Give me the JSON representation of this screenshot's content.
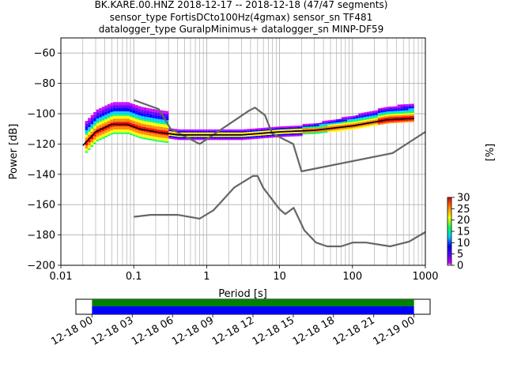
{
  "title_lines": [
    "BK.KARE.00.HNZ   2018-12-17 -- 2018-12-18  (47/47 segments)",
    "sensor_type FortisDCto100Hz(4gmax) sensor_sn TF481",
    "datalogger_type GuralpMinimus+ datalogger_sn MINP-DF59"
  ],
  "chart_data": {
    "type": "heatmap",
    "title": "BK.KARE.00.HNZ   2018-12-17 -- 2018-12-18  (47/47 segments)",
    "xlabel": "Period [s]",
    "ylabel": "Power [dB]",
    "x_scale": "log",
    "xlim": [
      0.01,
      1000
    ],
    "ylim": [
      -200,
      -50
    ],
    "x_ticks": [
      0.01,
      0.1,
      1,
      10,
      100,
      1000
    ],
    "x_tick_labels": [
      "0.01",
      "0.1",
      "1",
      "10",
      "100",
      "1000"
    ],
    "y_ticks": [
      -200,
      -180,
      -160,
      -140,
      -120,
      -100,
      -80,
      -60
    ],
    "y_tick_labels": [
      "−200",
      "−180",
      "−160",
      "−140",
      "−120",
      "−100",
      "−80",
      "−60"
    ],
    "grid": true,
    "colorbar": {
      "label": "[%]",
      "range": [
        0,
        30
      ],
      "ticks": [
        0,
        5,
        10,
        15,
        20,
        25,
        30
      ],
      "tick_labels": [
        "0",
        "5",
        "10",
        "15",
        "20",
        "25",
        "30"
      ],
      "colormap": "pqlx"
    },
    "series": [
      {
        "role": "noise-model-high",
        "color": "#666666",
        "points": [
          [
            0.1,
            -91
          ],
          [
            0.22,
            -97
          ],
          [
            0.32,
            -110
          ],
          [
            0.8,
            -120
          ],
          [
            3.8,
            -98
          ],
          [
            4.6,
            -96
          ],
          [
            6.3,
            -101
          ],
          [
            7.9,
            -113
          ],
          [
            15.4,
            -120
          ],
          [
            20,
            -138
          ],
          [
            354.8,
            -126
          ],
          [
            1000,
            -112
          ]
        ]
      },
      {
        "role": "noise-model-low",
        "color": "#666666",
        "points": [
          [
            0.1,
            -168
          ],
          [
            0.17,
            -166.7
          ],
          [
            0.4,
            -166.7
          ],
          [
            0.8,
            -169.2
          ],
          [
            1.24,
            -163.7
          ],
          [
            2.4,
            -148.6
          ],
          [
            4.3,
            -141.1
          ],
          [
            5,
            -141.1
          ],
          [
            6,
            -149
          ],
          [
            10,
            -163
          ],
          [
            12,
            -166.2
          ],
          [
            15.6,
            -162.1
          ],
          [
            21.9,
            -177
          ],
          [
            31.6,
            -185
          ],
          [
            45,
            -187.5
          ],
          [
            70,
            -187.5
          ],
          [
            101,
            -185
          ],
          [
            154,
            -185
          ],
          [
            328,
            -187.5
          ],
          [
            600,
            -184.4
          ],
          [
            1000,
            -178
          ]
        ]
      },
      {
        "role": "mode",
        "color": "#000000",
        "points": [
          [
            0.02,
            -121
          ],
          [
            0.03,
            -112
          ],
          [
            0.05,
            -107
          ],
          [
            0.08,
            -107
          ],
          [
            0.12,
            -110
          ],
          [
            0.2,
            -112
          ],
          [
            0.4,
            -114
          ],
          [
            1,
            -114
          ],
          [
            3,
            -114
          ],
          [
            10,
            -112
          ],
          [
            30,
            -111
          ],
          [
            100,
            -108
          ],
          [
            300,
            -104
          ],
          [
            700,
            -103
          ]
        ]
      }
    ]
  },
  "timeline": {
    "x_ticks": [
      "12-18 00",
      "12-18 03",
      "12-18 06",
      "12-18 09",
      "12-18 12",
      "12-18 15",
      "12-18 18",
      "12-18 21",
      "12-19 00"
    ],
    "start_hour": -1.2,
    "end_hour": 25.2,
    "data_start_hour": 0,
    "data_end_hour": 24,
    "bars": [
      {
        "role": "segments-used",
        "color": "#008000"
      },
      {
        "role": "data-available",
        "color": "#0000ff"
      }
    ]
  }
}
